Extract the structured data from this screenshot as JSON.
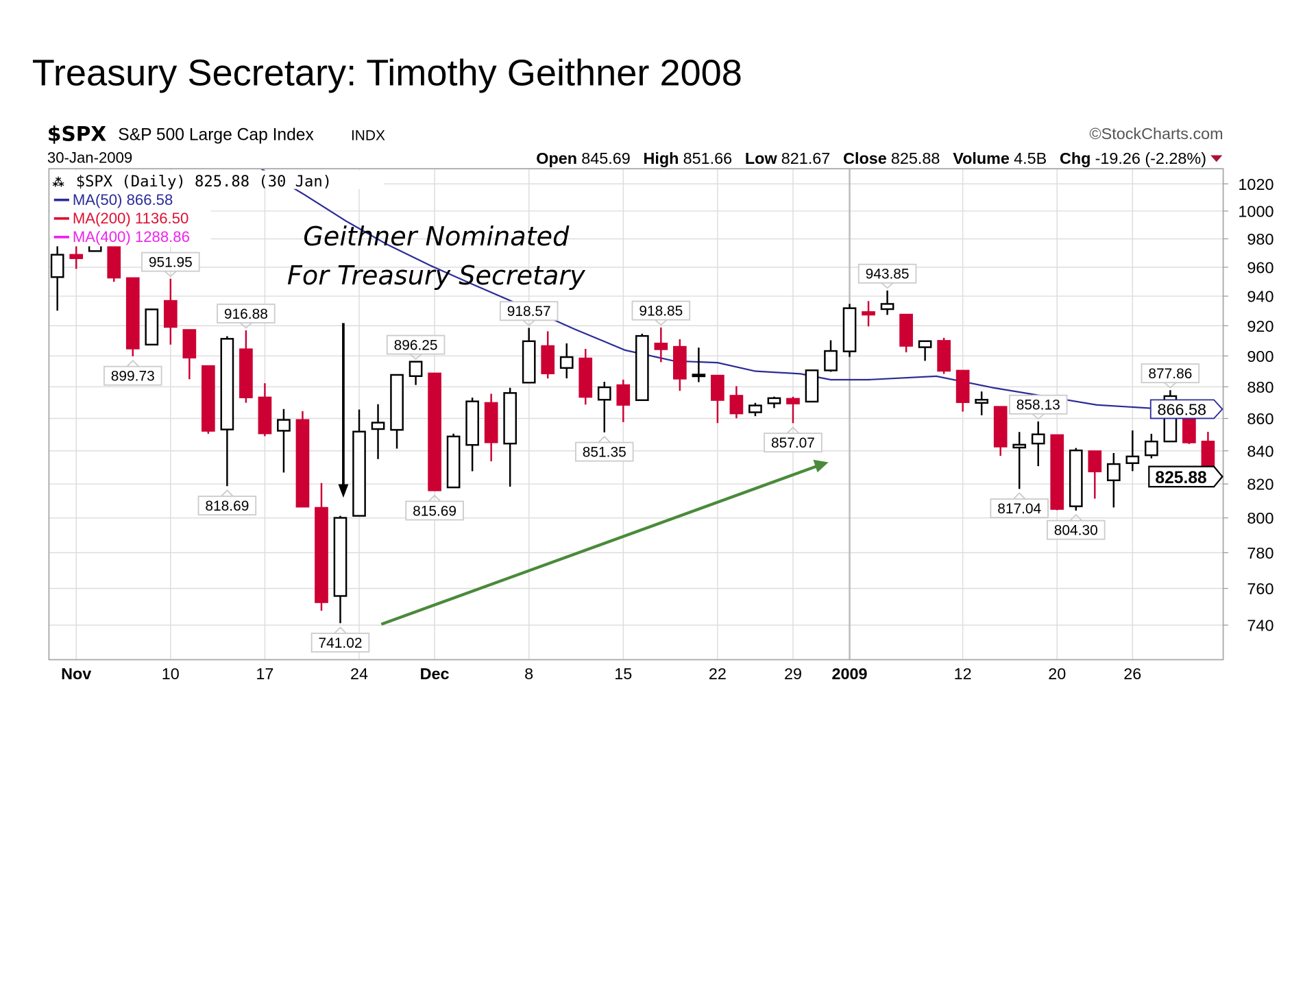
{
  "slide_title": "Treasury Secretary: Timothy Geithner 2008",
  "chart_data": {
    "type": "candlestick",
    "title": "$SPX",
    "subtitle": "S&P 500 Large Cap Index",
    "exchange": "INDX",
    "date": "30-Jan-2009",
    "source": "©StockCharts.com",
    "summary": {
      "open_label": "Open",
      "open": "845.69",
      "high_label": "High",
      "high": "851.66",
      "low_label": "Low",
      "low": "821.67",
      "close_label": "Close",
      "close": "825.88",
      "volume_label": "Volume",
      "volume": "4.5B",
      "chg_label": "Chg",
      "chg": "-19.26 (-2.28%)"
    },
    "legend": {
      "main": "$SPX (Daily) 825.88 (30 Jan)",
      "ma50": "MA(50) 866.58",
      "ma200": "MA(200) 1136.50",
      "ma400": "MA(400) 1288.86"
    },
    "colors": {
      "up": "#000000",
      "down": "#cc0033",
      "ma50": "#2b2b99",
      "ma200": "#dd1133",
      "ma400": "#ee22ee",
      "grid": "#dddddd",
      "annotation_arrow": "#4a8a3a"
    },
    "y_scale": "log",
    "ylim": [
      725,
      1035
    ],
    "y_ticks": [
      740,
      760,
      780,
      800,
      820,
      840,
      860,
      880,
      900,
      920,
      940,
      960,
      980,
      1000,
      1020
    ],
    "x_ticks": [
      {
        "i": 1,
        "label": "Nov",
        "bold": true
      },
      {
        "i": 6,
        "label": "10"
      },
      {
        "i": 11,
        "label": "17"
      },
      {
        "i": 16,
        "label": "24"
      },
      {
        "i": 20,
        "label": "Dec",
        "bold": true
      },
      {
        "i": 25,
        "label": "8"
      },
      {
        "i": 30,
        "label": "15"
      },
      {
        "i": 35,
        "label": "22"
      },
      {
        "i": 39,
        "label": "29"
      },
      {
        "i": 42,
        "label": "2009",
        "bold": true
      },
      {
        "i": 48,
        "label": "12"
      },
      {
        "i": 53,
        "label": "20"
      },
      {
        "i": 57,
        "label": "26"
      }
    ],
    "candles": [
      {
        "d": "2008-10-31",
        "o": 953.11,
        "h": 984.38,
        "l": 930.1,
        "c": 968.75
      },
      {
        "d": "2008-11-03",
        "o": 968.67,
        "h": 975.57,
        "l": 958.82,
        "c": 966.3
      },
      {
        "d": "2008-11-04",
        "o": 971.31,
        "h": 1007.51,
        "l": 971.31,
        "c": 1005.75
      },
      {
        "d": "2008-11-05",
        "o": 1001.84,
        "h": 1001.84,
        "l": 949.86,
        "c": 952.77
      },
      {
        "d": "2008-11-06",
        "o": 952.4,
        "h": 952.4,
        "l": 899.73,
        "c": 904.88
      },
      {
        "d": "2008-11-07",
        "o": 907.44,
        "h": 931.46,
        "l": 906.9,
        "c": 930.99
      },
      {
        "d": "2008-11-10",
        "o": 936.75,
        "h": 951.95,
        "l": 907.47,
        "c": 919.21
      },
      {
        "d": "2008-11-11",
        "o": 917.15,
        "h": 917.15,
        "l": 884.9,
        "c": 898.95
      },
      {
        "d": "2008-11-12",
        "o": 893.39,
        "h": 893.39,
        "l": 850.48,
        "c": 852.3
      },
      {
        "d": "2008-11-13",
        "o": 853.13,
        "h": 913.01,
        "l": 818.69,
        "c": 911.29
      },
      {
        "d": "2008-11-14",
        "o": 904.36,
        "h": 916.88,
        "l": 869.88,
        "c": 873.29
      },
      {
        "d": "2008-11-17",
        "o": 873.23,
        "h": 882.29,
        "l": 848.98,
        "c": 850.75
      },
      {
        "d": "2008-11-18",
        "o": 852.34,
        "h": 865.9,
        "l": 826.84,
        "c": 859.12
      },
      {
        "d": "2008-11-19",
        "o": 859.03,
        "h": 864.57,
        "l": 806.18,
        "c": 806.58
      },
      {
        "d": "2008-11-20",
        "o": 805.87,
        "h": 820.52,
        "l": 747.78,
        "c": 752.44
      },
      {
        "d": "2008-11-21",
        "o": 755.84,
        "h": 801.2,
        "l": 741.02,
        "c": 800.03
      },
      {
        "d": "2008-11-24",
        "o": 801.2,
        "h": 865.6,
        "l": 801.2,
        "c": 851.81
      },
      {
        "d": "2008-11-25",
        "o": 853.4,
        "h": 868.94,
        "l": 834.99,
        "c": 857.39
      },
      {
        "d": "2008-11-26",
        "o": 852.9,
        "h": 887.68,
        "l": 841.37,
        "c": 887.68
      },
      {
        "d": "2008-11-28",
        "o": 886.89,
        "h": 896.25,
        "l": 881.21,
        "c": 896.24
      },
      {
        "d": "2008-12-01",
        "o": 888.61,
        "h": 888.61,
        "l": 815.69,
        "c": 816.21
      },
      {
        "d": "2008-12-02",
        "o": 817.94,
        "h": 850.54,
        "l": 817.94,
        "c": 848.81
      },
      {
        "d": "2008-12-03",
        "o": 843.6,
        "h": 873.12,
        "l": 827.6,
        "c": 870.74
      },
      {
        "d": "2008-12-04",
        "o": 869.75,
        "h": 875.6,
        "l": 833.6,
        "c": 845.22
      },
      {
        "d": "2008-12-05",
        "o": 844.43,
        "h": 879.42,
        "l": 818.41,
        "c": 876.07
      },
      {
        "d": "2008-12-08",
        "o": 882.71,
        "h": 918.57,
        "l": 882.71,
        "c": 909.7
      },
      {
        "d": "2008-12-09",
        "o": 906.48,
        "h": 916.26,
        "l": 885.38,
        "c": 888.67
      },
      {
        "d": "2008-12-10",
        "o": 892.17,
        "h": 908.27,
        "l": 885.45,
        "c": 899.24
      },
      {
        "d": "2008-12-11",
        "o": 898.35,
        "h": 904.63,
        "l": 868.73,
        "c": 873.59
      },
      {
        "d": "2008-12-12",
        "o": 871.79,
        "h": 883.24,
        "l": 851.35,
        "c": 879.73
      },
      {
        "d": "2008-12-15",
        "o": 881.07,
        "h": 884.63,
        "l": 857.72,
        "c": 868.57
      },
      {
        "d": "2008-12-16",
        "o": 871.53,
        "h": 914.66,
        "l": 871.53,
        "c": 913.18
      },
      {
        "d": "2008-12-17",
        "o": 908.16,
        "h": 918.85,
        "l": 895.94,
        "c": 904.42
      },
      {
        "d": "2008-12-18",
        "o": 905.98,
        "h": 911.02,
        "l": 877.44,
        "c": 885.28
      },
      {
        "d": "2008-12-19",
        "o": 886.96,
        "h": 905.47,
        "l": 883.02,
        "c": 887.88
      },
      {
        "d": "2008-12-22",
        "o": 887.2,
        "h": 887.37,
        "l": 857.09,
        "c": 871.63
      },
      {
        "d": "2008-12-23",
        "o": 874.31,
        "h": 880.44,
        "l": 860.1,
        "c": 863.16
      },
      {
        "d": "2008-12-24",
        "o": 863.87,
        "h": 869.79,
        "l": 861.44,
        "c": 868.15
      },
      {
        "d": "2008-12-26",
        "o": 869.51,
        "h": 873.74,
        "l": 866.52,
        "c": 872.8
      },
      {
        "d": "2008-12-29",
        "o": 872.37,
        "h": 873.7,
        "l": 857.07,
        "c": 869.42
      },
      {
        "d": "2008-12-30",
        "o": 870.58,
        "h": 891.12,
        "l": 870.58,
        "c": 890.64
      },
      {
        "d": "2008-12-31",
        "o": 890.59,
        "h": 910.32,
        "l": 889.67,
        "c": 903.25
      },
      {
        "d": "2009-01-02",
        "o": 902.99,
        "h": 934.73,
        "l": 899.35,
        "c": 931.8
      },
      {
        "d": "2009-01-05",
        "o": 929.17,
        "h": 936.63,
        "l": 919.53,
        "c": 927.45
      },
      {
        "d": "2009-01-06",
        "o": 931.17,
        "h": 943.85,
        "l": 927.28,
        "c": 934.7
      },
      {
        "d": "2009-01-07",
        "o": 927.45,
        "h": 927.45,
        "l": 902.37,
        "c": 906.65
      },
      {
        "d": "2009-01-08",
        "o": 905.73,
        "h": 910.0,
        "l": 896.81,
        "c": 909.73
      },
      {
        "d": "2009-01-09",
        "o": 909.91,
        "h": 911.93,
        "l": 888.31,
        "c": 890.35
      },
      {
        "d": "2009-01-12",
        "o": 890.4,
        "h": 890.4,
        "l": 864.32,
        "c": 870.26
      },
      {
        "d": "2009-01-13",
        "o": 869.79,
        "h": 877.02,
        "l": 862.02,
        "c": 871.79
      },
      {
        "d": "2009-01-14",
        "o": 867.28,
        "h": 867.28,
        "l": 836.93,
        "c": 842.62
      },
      {
        "d": "2009-01-15",
        "o": 841.99,
        "h": 851.59,
        "l": 817.04,
        "c": 843.74
      },
      {
        "d": "2009-01-16",
        "o": 844.45,
        "h": 858.13,
        "l": 830.66,
        "c": 850.12
      },
      {
        "d": "2009-01-20",
        "o": 849.64,
        "h": 849.64,
        "l": 804.47,
        "c": 805.22
      },
      {
        "d": "2009-01-21",
        "o": 806.77,
        "h": 841.72,
        "l": 804.3,
        "c": 840.24
      },
      {
        "d": "2009-01-22",
        "o": 839.74,
        "h": 839.74,
        "l": 811.29,
        "c": 827.5
      },
      {
        "d": "2009-01-23",
        "o": 822.16,
        "h": 838.61,
        "l": 806.07,
        "c": 831.95
      },
      {
        "d": "2009-01-26",
        "o": 832.5,
        "h": 852.53,
        "l": 827.69,
        "c": 836.57
      },
      {
        "d": "2009-01-27",
        "o": 837.3,
        "h": 850.45,
        "l": 835.4,
        "c": 845.71
      },
      {
        "d": "2009-01-28",
        "o": 845.73,
        "h": 877.86,
        "l": 845.73,
        "c": 874.09
      },
      {
        "d": "2009-01-29",
        "o": 868.89,
        "h": 868.89,
        "l": 844.15,
        "c": 845.14
      },
      {
        "d": "2009-01-30",
        "o": 845.69,
        "h": 851.66,
        "l": 821.67,
        "c": 825.88
      }
    ],
    "ma50": [
      [
        10.8,
        1031.3
      ],
      [
        13.1,
        1012
      ],
      [
        15.3,
        992.8
      ],
      [
        17.5,
        975.9
      ],
      [
        19.8,
        961
      ],
      [
        22.0,
        948.2
      ],
      [
        24.9,
        932
      ],
      [
        27.4,
        917.8
      ],
      [
        30.1,
        903.8
      ],
      [
        32.7,
        896.7
      ],
      [
        35.0,
        895.6
      ],
      [
        37.0,
        890.1
      ],
      [
        39.4,
        888.4
      ],
      [
        41.0,
        884.6
      ],
      [
        43.0,
        884.6
      ],
      [
        46.6,
        886.8
      ],
      [
        49.7,
        879.2
      ],
      [
        52.4,
        873.9
      ],
      [
        55.1,
        868.5
      ],
      [
        58.7,
        865.9
      ],
      [
        61.0,
        866.58
      ]
    ],
    "price_labels": [
      {
        "i": 6,
        "text": "951.95",
        "pos": "above"
      },
      {
        "i": 4,
        "text": "899.73",
        "pos": "below"
      },
      {
        "i": 10,
        "text": "916.88",
        "pos": "above"
      },
      {
        "i": 9,
        "text": "818.69",
        "pos": "below"
      },
      {
        "i": 15,
        "text": "741.02",
        "pos": "below"
      },
      {
        "i": 19,
        "text": "896.25",
        "pos": "above"
      },
      {
        "i": 20,
        "text": "815.69",
        "pos": "below"
      },
      {
        "i": 25,
        "text": "918.57",
        "pos": "above"
      },
      {
        "i": 29,
        "text": "851.35",
        "pos": "below"
      },
      {
        "i": 32,
        "text": "918.85",
        "pos": "above"
      },
      {
        "i": 39,
        "text": "857.07",
        "pos": "below"
      },
      {
        "i": 44,
        "text": "943.85",
        "pos": "above"
      },
      {
        "i": 52,
        "text": "858.13",
        "pos": "above"
      },
      {
        "i": 51,
        "text": "817.04",
        "pos": "below"
      },
      {
        "i": 54,
        "text": "804.30",
        "pos": "below"
      },
      {
        "i": 59,
        "text": "877.86",
        "pos": "above"
      }
    ],
    "axis_markers": {
      "ma50": "866.58",
      "last": "825.88"
    },
    "annotations": {
      "line1": "Geithner Nominated",
      "line2": "For Treasury Secretary"
    }
  }
}
